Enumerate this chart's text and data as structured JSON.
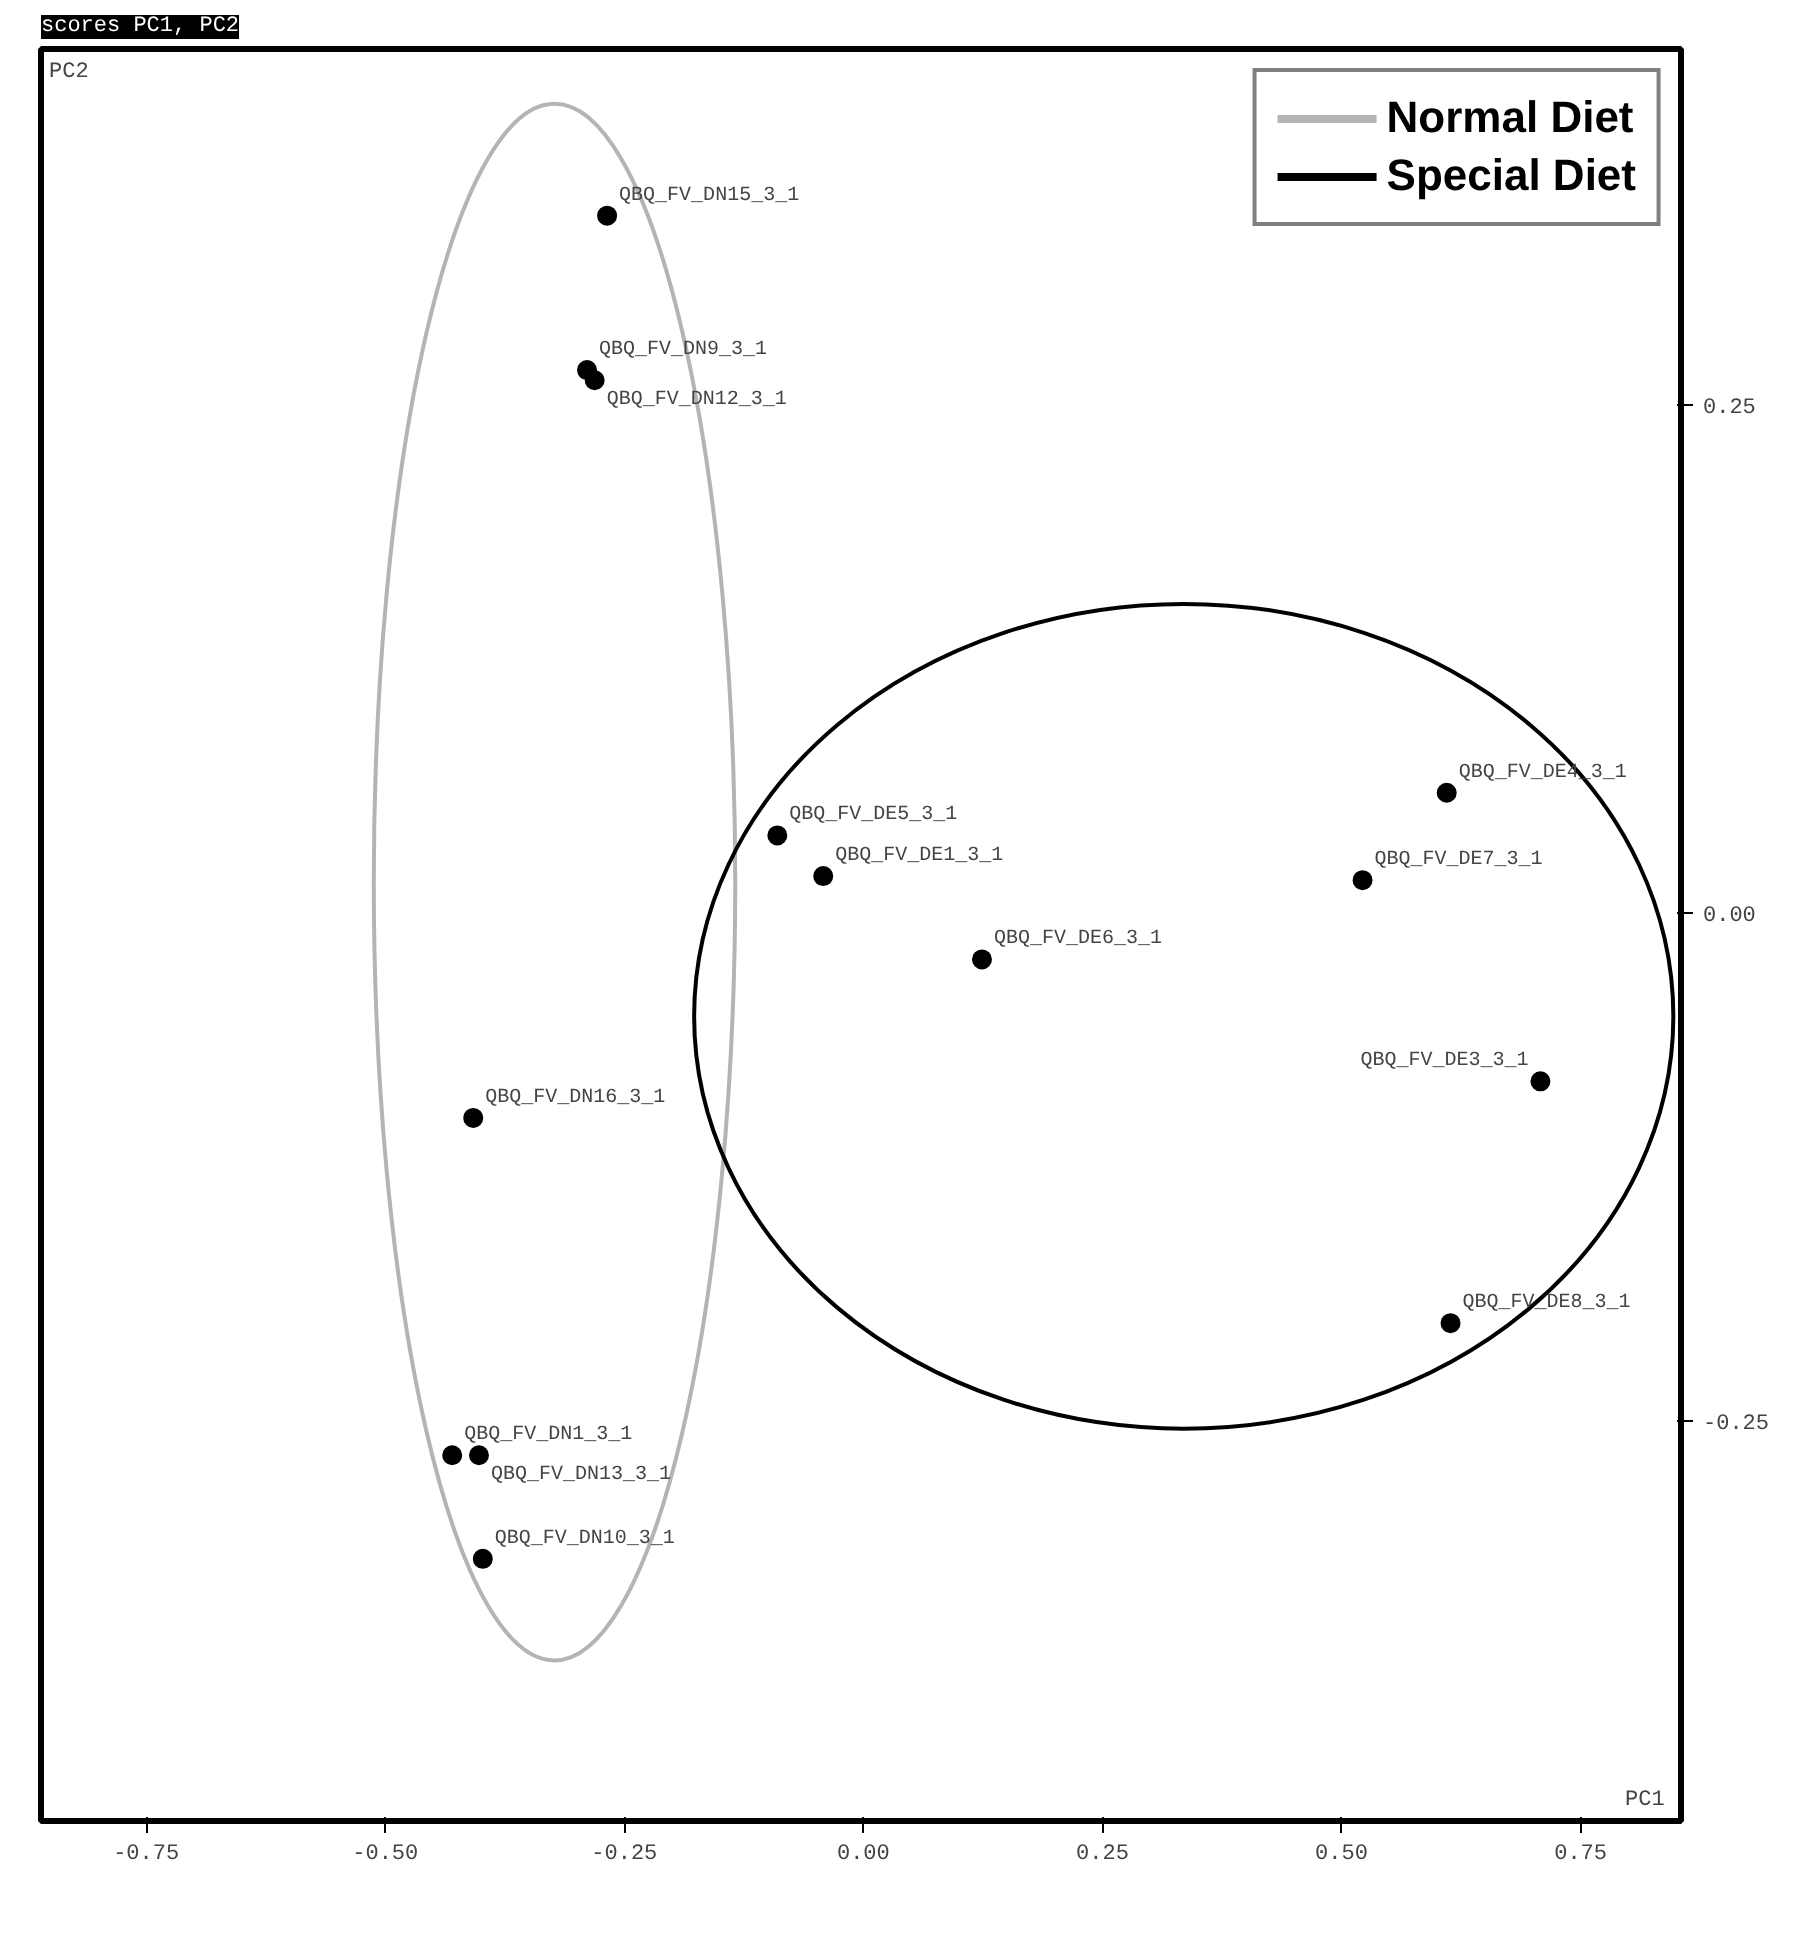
{
  "chart_data": {
    "type": "line",
    "title": "scores PC1, PC2",
    "xlabel": "PC1",
    "ylabel": "PC2",
    "xlim": [
      -0.86,
      0.855
    ],
    "ylim": [
      -0.447,
      0.425
    ],
    "xticks": [
      {
        "value": -0.75,
        "label": "-0.75"
      },
      {
        "value": -0.5,
        "label": "-0.50"
      },
      {
        "value": -0.25,
        "label": "-0.25"
      },
      {
        "value": 0,
        "label": "0.00"
      },
      {
        "value": 0.25,
        "label": "0.25"
      },
      {
        "value": 0.5,
        "label": "0.50"
      },
      {
        "value": 0.75,
        "label": "0.75"
      }
    ],
    "yticks": [
      {
        "value": 0.25,
        "label": "0.25"
      },
      {
        "value": 0,
        "label": "0.00"
      },
      {
        "value": -0.25,
        "label": "-0.25"
      }
    ],
    "grid": false,
    "legend": "top right",
    "series": [
      {
        "type": "scatter",
        "marker": "circle",
        "color": "#000000",
        "x": [
          -0.268,
          -0.289,
          -0.281,
          -0.408,
          -0.43,
          -0.402,
          -0.398,
          -0.09,
          -0.042,
          0.124,
          0.61,
          0.522,
          0.708,
          0.614
        ],
        "values": [
          0.343,
          0.267,
          0.262,
          -0.101,
          -0.267,
          -0.267,
          -0.318,
          0.038,
          0.018,
          -0.023,
          0.059,
          0.016,
          -0.083,
          -0.202
        ]
      },
      {
        "name": "Normal Diet",
        "color": "#b4b4b4"
      },
      {
        "name": "Special Diet",
        "color": "#000000"
      }
    ],
    "annotations": [
      {
        "text": "QBQ_FV_DN15_3_1",
        "x": -0.268,
        "y": 0.343
      },
      {
        "text": "QBQ_FV_DN9_3_1",
        "x": -0.289,
        "y": 0.267
      },
      {
        "text": "QBQ_FV_DN12_3_1",
        "x": -0.281,
        "y": 0.262
      },
      {
        "text": "QBQ_FV_DN16_3_1",
        "x": -0.408,
        "y": -0.101
      },
      {
        "text": "QBQ_FV_DN1_3_1",
        "x": -0.43,
        "y": -0.267
      },
      {
        "text": "QBQ_FV_DN13_3_1",
        "x": -0.402,
        "y": -0.267
      },
      {
        "text": "QBQ_FV_DN10_3_1",
        "x": -0.398,
        "y": -0.318
      },
      {
        "text": "QBQ_FV_DE5_3_1",
        "x": -0.09,
        "y": 0.038
      },
      {
        "text": "QBQ_FV_DE1_3_1",
        "x": -0.042,
        "y": 0.018
      },
      {
        "text": "QBQ_FV_DE6_3_1",
        "x": 0.124,
        "y": -0.023
      },
      {
        "text": "QBQ_FV_DE4_3_1",
        "x": 0.61,
        "y": 0.059
      },
      {
        "text": "QBQ_FV_DE7_3_1",
        "x": 0.522,
        "y": 0.016
      },
      {
        "text": "QBQ_FV_DE3_3_1",
        "x": 0.708,
        "y": -0.083
      },
      {
        "text": "QBQ_FV_DE8_3_1",
        "x": 0.614,
        "y": -0.202
      }
    ]
  }
}
